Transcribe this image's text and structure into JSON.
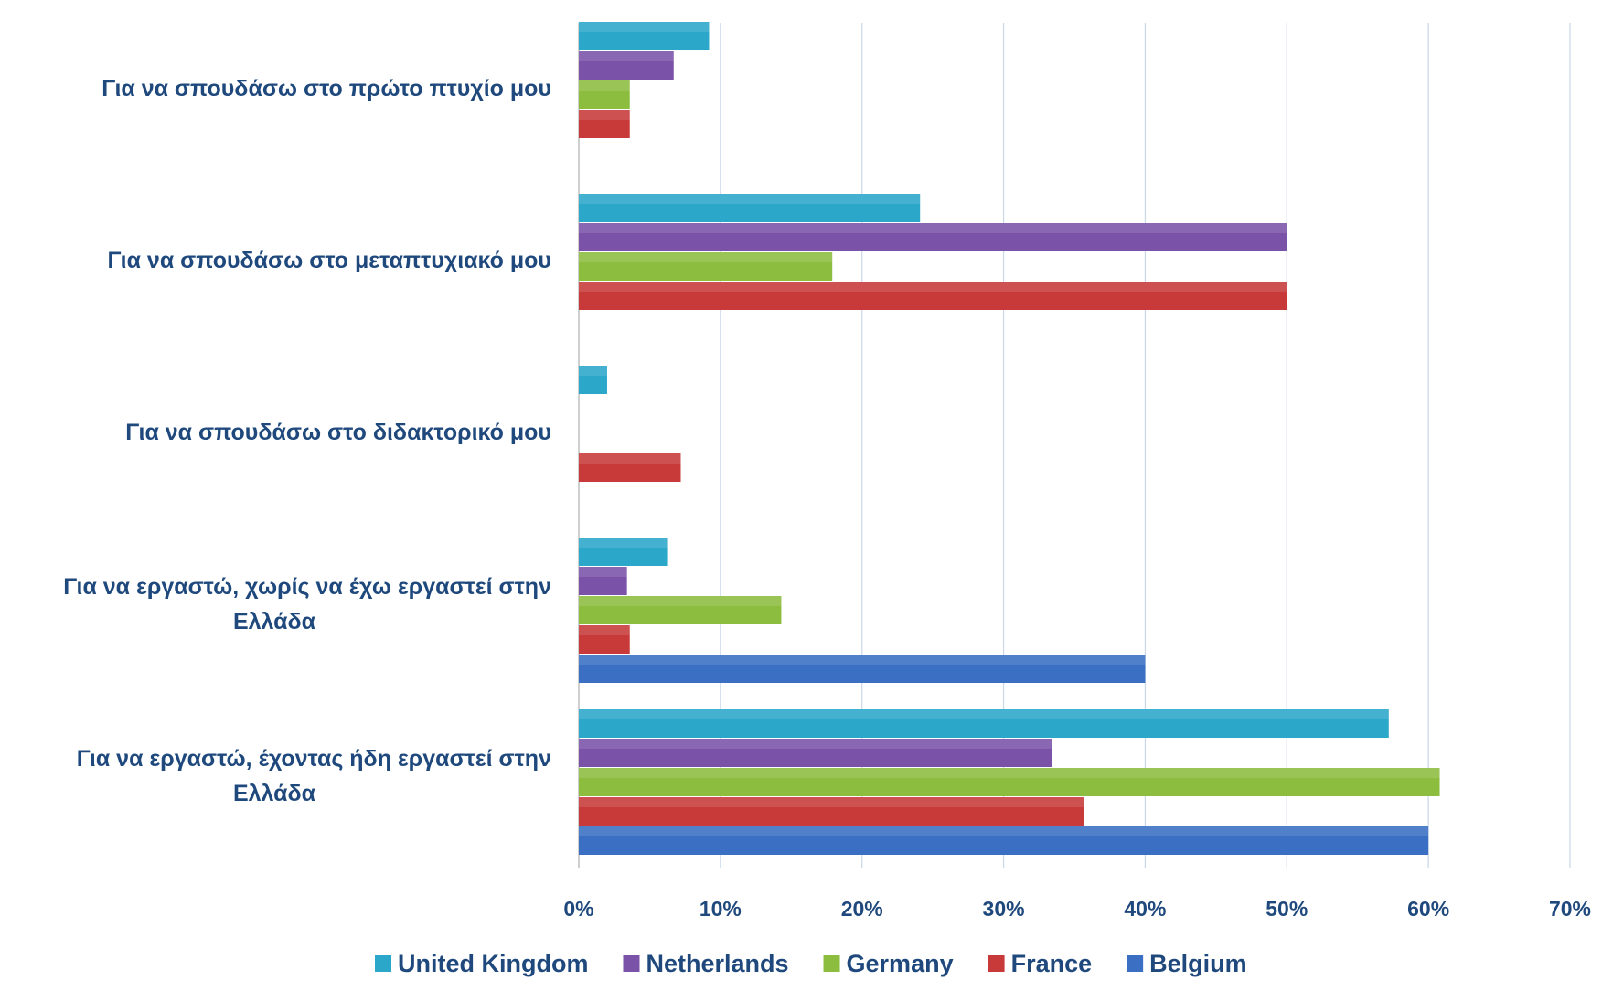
{
  "chart_data": {
    "type": "bar",
    "orientation": "horizontal",
    "categories": [
      "Για να σπουδάσω στο πρώτο πτυχίο μου",
      "Για να σπουδάσω στο μεταπτυχιακό μου",
      "Για να σπουδάσω στο διδακτορικό μου",
      "Για να εργαστώ, χωρίς να έχω εργαστεί στην Ελλάδα",
      "Για να εργαστώ, έχοντας ήδη εργαστεί στην Ελλάδα"
    ],
    "category_lines": [
      [
        "Για να σπουδάσω στο πρώτο πτυχίο μου"
      ],
      [
        "Για να σπουδάσω στο μεταπτυχιακό μου"
      ],
      [
        "Για να σπουδάσω στο διδακτορικό μου"
      ],
      [
        "Για να εργαστώ, χωρίς να έχω εργαστεί στην",
        "Ελλάδα"
      ],
      [
        "Για να εργαστώ, έχοντας ήδη εργαστεί στην",
        "Ελλάδα"
      ]
    ],
    "series": [
      {
        "name": "United Kingdom",
        "color": "#2aa7c9",
        "values": [
          9.2,
          24.1,
          2.0,
          6.3,
          57.2
        ]
      },
      {
        "name": "Netherlands",
        "color": "#7a52a8",
        "values": [
          6.7,
          50.0,
          0,
          3.4,
          33.4
        ]
      },
      {
        "name": "Germany",
        "color": "#8cbd3f",
        "values": [
          3.6,
          17.9,
          0,
          14.3,
          60.8
        ]
      },
      {
        "name": "France",
        "color": "#c83a3a",
        "values": [
          3.6,
          50.0,
          7.2,
          3.6,
          35.7
        ]
      },
      {
        "name": "Belgium",
        "color": "#3a6fc4",
        "values": [
          0,
          0,
          0,
          40.0,
          60.0
        ]
      }
    ],
    "xlim": [
      0,
      70
    ],
    "x_ticks": [
      0,
      10,
      20,
      30,
      40,
      50,
      60,
      70
    ],
    "x_tick_labels": [
      "0%",
      "10%",
      "20%",
      "30%",
      "40%",
      "50%",
      "60%",
      "70%"
    ],
    "value_unit": "%",
    "grid": "vertical",
    "legend_position": "bottom",
    "colors": {
      "label_text": "#1f497d",
      "gridline": "#c9d7ea",
      "axis": "#bfbfbf"
    }
  }
}
